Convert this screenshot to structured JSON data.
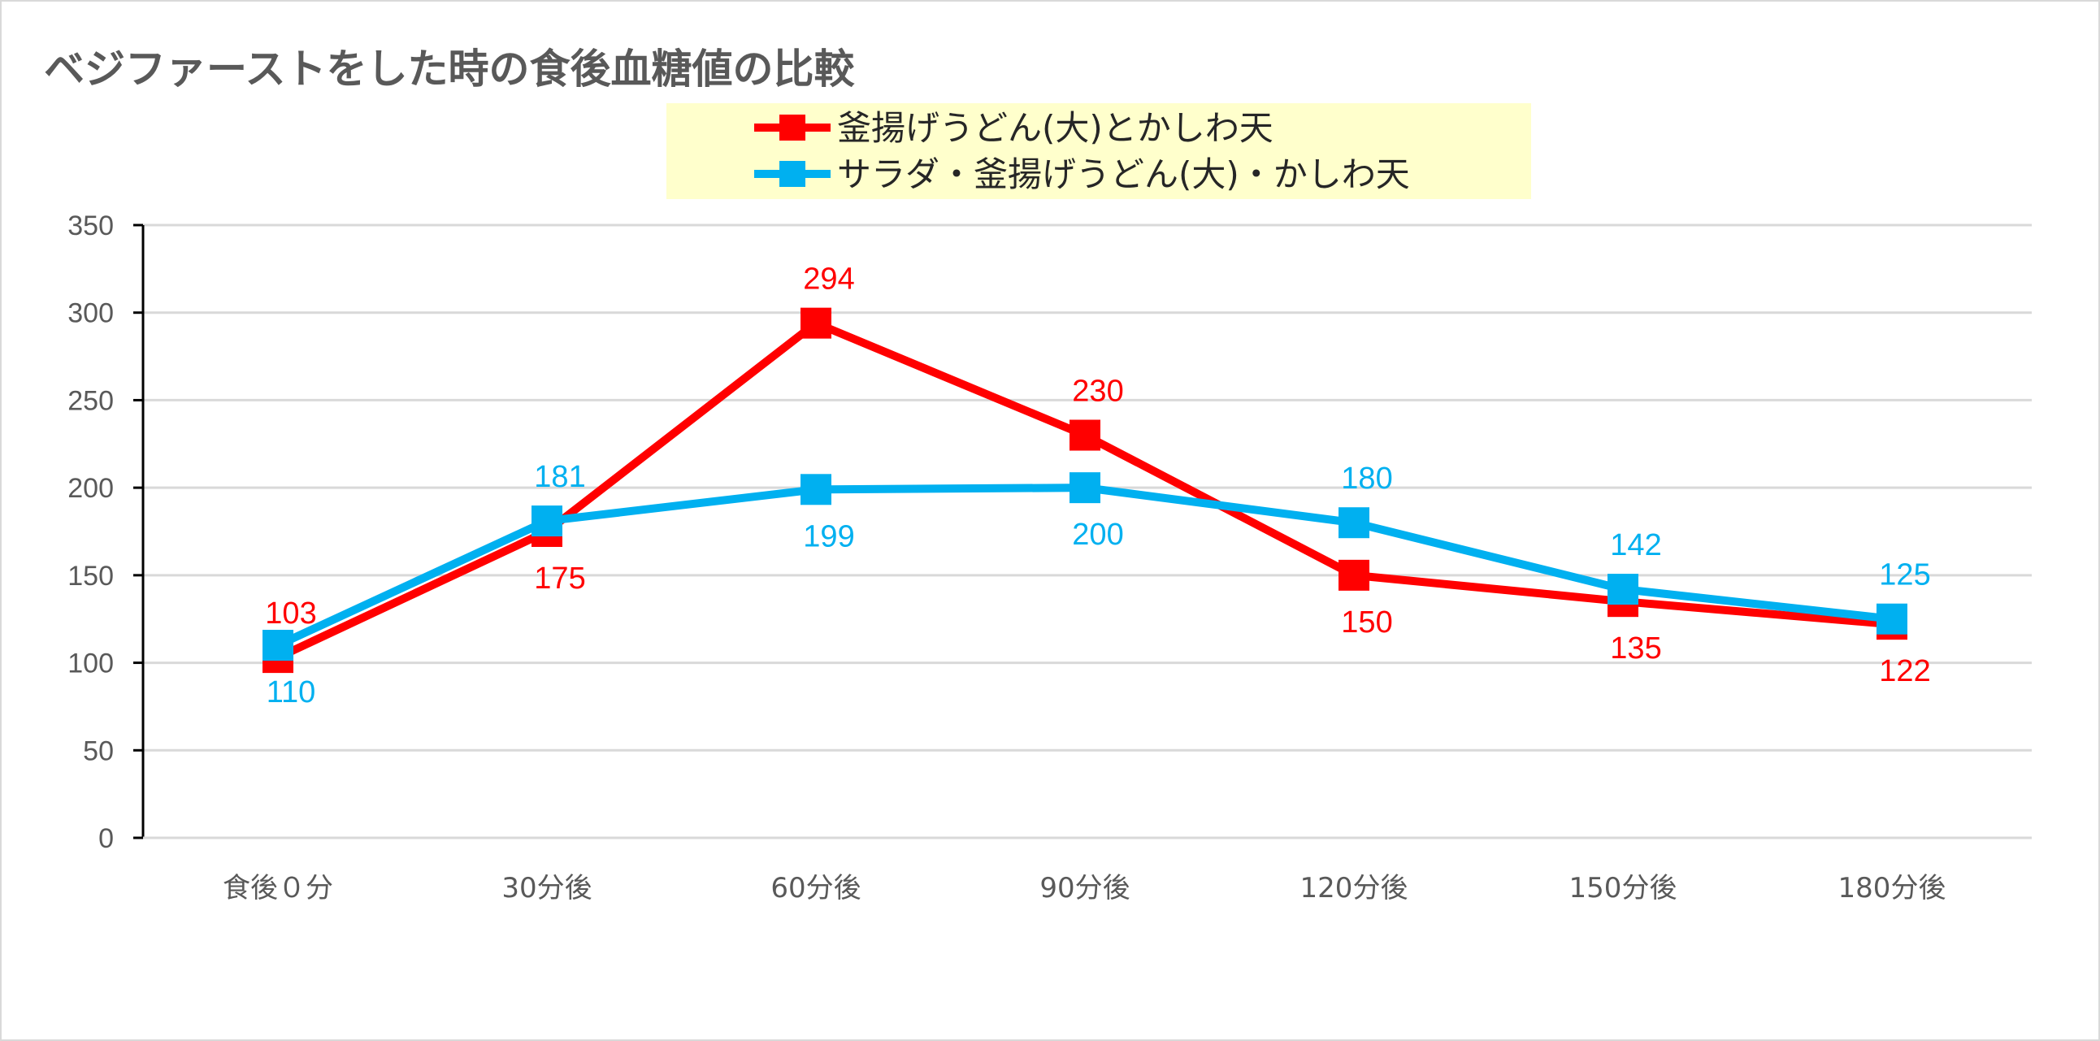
{
  "chart_data": {
    "type": "line",
    "title": "ベジファーストをした時の食後血糖値の比較",
    "categories": [
      "食後０分",
      "30分後",
      "60分後",
      "90分後",
      "120分後",
      "150分後",
      "180分後"
    ],
    "series": [
      {
        "name": "釜揚げうどん(大)とかしわ天",
        "color": "#ff0000",
        "values": [
          103,
          175,
          294,
          230,
          150,
          135,
          122
        ]
      },
      {
        "name": "サラダ・釜揚げうどん(大)・かしわ天",
        "color": "#00b0f0",
        "values": [
          110,
          181,
          199,
          200,
          180,
          142,
          125
        ]
      }
    ],
    "ylim": [
      0,
      350
    ],
    "yticks": [
      0,
      50,
      100,
      150,
      200,
      250,
      300,
      350
    ],
    "grid": true,
    "legend_position": "top-center",
    "legend_background": "#ffffcc",
    "xlabel": "",
    "ylabel": ""
  }
}
